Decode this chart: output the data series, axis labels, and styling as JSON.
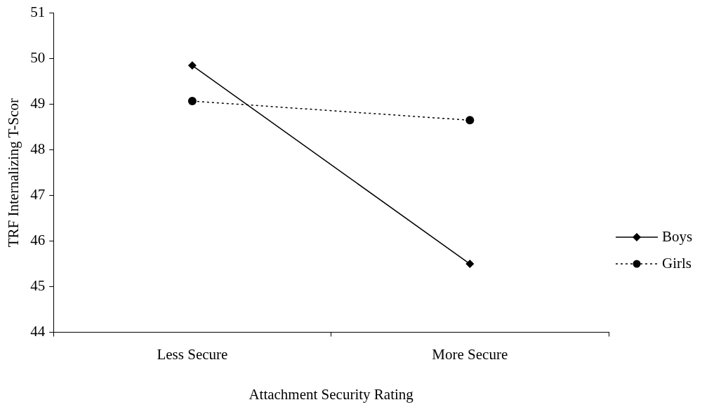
{
  "chart_data": {
    "type": "line",
    "xlabel": "Attachment Security Rating",
    "ylabel": "TRF Internalizing T-Scor",
    "categories": [
      "Less Secure",
      "More Secure"
    ],
    "series": [
      {
        "name": "Boys",
        "color": "#000000",
        "values": [
          49.85,
          45.5
        ],
        "marker": "diamond",
        "line_style": "solid"
      },
      {
        "name": "Girls",
        "color": "#000000",
        "values": [
          49.07,
          48.65
        ],
        "marker": "circle",
        "line_style": "dotted"
      }
    ],
    "ylim": [
      44,
      51
    ],
    "yticks": [
      44,
      45,
      46,
      47,
      48,
      49,
      50,
      51
    ],
    "grid": false,
    "legend": "right"
  }
}
